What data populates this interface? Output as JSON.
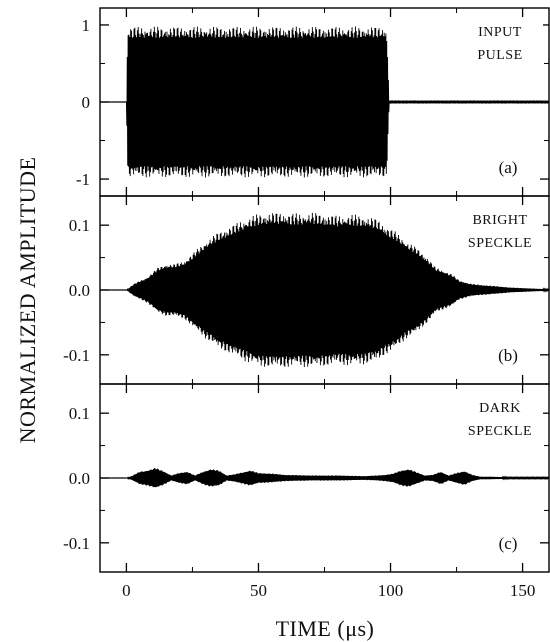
{
  "chart_data": {
    "type": "line",
    "xlabel": "TIME (μs)",
    "ylabel": "NORMALIZED AMPLITUDE",
    "xlim": [
      -10,
      160
    ],
    "xticks": [
      0,
      50,
      100,
      150
    ],
    "xtick_labels": [
      "0",
      "50",
      "100",
      "150"
    ],
    "grid": false,
    "panels": [
      {
        "id": "a",
        "label": "(a)",
        "annotation": [
          "INPUT",
          "PULSE"
        ],
        "ylim": [
          -1.22,
          1.22
        ],
        "yticks": [
          1,
          0,
          -1
        ],
        "ytick_labels": [
          "1",
          "0",
          "-1"
        ],
        "envelope": {
          "t": [
            0,
            0.5,
            1.5,
            97.5,
            98.5,
            99.5,
            160
          ],
          "amp": [
            0,
            0.98,
            0.98,
            0.98,
            0.98,
            0.02,
            0.02
          ]
        }
      },
      {
        "id": "b",
        "label": "(b)",
        "annotation": [
          "BRIGHT",
          "SPECKLE"
        ],
        "ylim": [
          -0.145,
          0.145
        ],
        "yticks": [
          0.1,
          0.0,
          -0.1
        ],
        "ytick_labels": [
          "0.1",
          "0.0",
          "-0.1"
        ],
        "envelope": {
          "t": [
            0,
            3,
            8,
            12,
            15,
            18,
            22,
            26,
            30,
            35,
            40,
            45,
            50,
            55,
            60,
            65,
            70,
            75,
            80,
            85,
            90,
            95,
            98,
            102,
            106,
            110,
            114,
            117,
            120,
            123,
            126,
            130,
            134,
            140,
            145,
            150,
            155,
            160
          ],
          "amp": [
            0,
            0.01,
            0.02,
            0.035,
            0.04,
            0.04,
            0.045,
            0.06,
            0.075,
            0.09,
            0.1,
            0.11,
            0.118,
            0.12,
            0.12,
            0.118,
            0.12,
            0.118,
            0.115,
            0.117,
            0.115,
            0.11,
            0.1,
            0.09,
            0.075,
            0.065,
            0.05,
            0.035,
            0.03,
            0.025,
            0.015,
            0.01,
            0.008,
            0.006,
            0.004,
            0.003,
            0.002,
            0.001
          ]
        }
      },
      {
        "id": "c",
        "label": "(c)",
        "annotation": [
          "DARK",
          "SPECKLE"
        ],
        "ylim": [
          -0.145,
          0.145
        ],
        "yticks": [
          0.1,
          0.0,
          -0.1
        ],
        "ytick_labels": [
          "0.1",
          "0.0",
          "-0.1"
        ],
        "envelope": {
          "t": [
            0,
            2,
            5,
            8,
            11,
            14,
            17,
            20,
            23,
            26,
            29,
            32,
            35,
            38,
            41,
            44,
            47,
            50,
            55,
            60,
            70,
            80,
            90,
            95,
            98,
            101,
            104,
            107,
            110,
            113,
            116,
            119,
            122,
            125,
            128,
            131,
            134,
            138,
            145,
            150,
            155,
            160
          ],
          "amp": [
            0,
            0.003,
            0.01,
            0.012,
            0.016,
            0.011,
            0.004,
            0.008,
            0.01,
            0.004,
            0.01,
            0.014,
            0.012,
            0.004,
            0.006,
            0.009,
            0.012,
            0.008,
            0.007,
            0.005,
            0.004,
            0.004,
            0.003,
            0.004,
            0.005,
            0.007,
            0.012,
            0.014,
            0.009,
            0.004,
            0.005,
            0.01,
            0.004,
            0.008,
            0.011,
            0.005,
            0.002,
            0.002,
            0.001,
            0.001,
            0.001,
            0.001
          ]
        }
      }
    ]
  }
}
